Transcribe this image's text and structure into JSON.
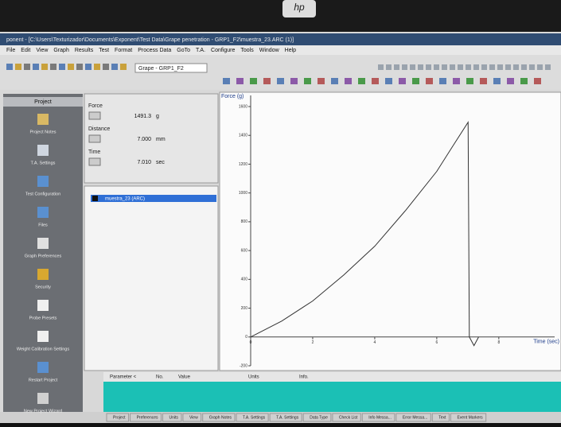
{
  "bezel": {
    "logo": "hp"
  },
  "window": {
    "title": "ponent - [C:\\Users\\Texturizador\\Documents\\Exponent\\Test Data\\Grape penetration - GRP1_F2\\muestra_23.ARC (1)]",
    "menu": [
      "File",
      "Edit",
      "View",
      "Graph",
      "Results",
      "Test",
      "Format",
      "Process Data",
      "GoTo",
      "T.A.",
      "Configure",
      "Tools",
      "Window",
      "Help"
    ],
    "dropdown": "Grape - GRP1_F2"
  },
  "project_panel": {
    "header": "Project",
    "items": [
      "Project Notes",
      "T.A. Settings",
      "Test Configuration",
      "Files",
      "Graph Preferences",
      "Security",
      "Probe Presets",
      "Weight Calibration Settings",
      "Restart Project",
      "New Project Wizard"
    ]
  },
  "readouts": [
    {
      "label": "Force",
      "value": "1491.3",
      "unit": "g"
    },
    {
      "label": "Distance",
      "value": "7.000",
      "unit": "mm"
    },
    {
      "label": "Time",
      "value": "7.010",
      "unit": "sec"
    }
  ],
  "files": [
    "muestra_23 (ARC)"
  ],
  "chart_data": {
    "type": "line",
    "y_label": "Force (g)",
    "x_label": "Time (sec)",
    "x": [
      0,
      1,
      2,
      3,
      4,
      5,
      6,
      6.5,
      7.01,
      7.05,
      7.2,
      7.35
    ],
    "series": [
      {
        "name": "muestra_23 (ARC)",
        "color": "#333333",
        "values": [
          0,
          110,
          250,
          430,
          630,
          880,
          1150,
          1320,
          1491.3,
          0,
          -60,
          0
        ]
      }
    ],
    "xlim": [
      0,
      9.8
    ],
    "xticks": [
      0,
      2,
      4,
      6,
      8
    ],
    "ylim": [
      -200,
      1600
    ],
    "yticks": [
      -200,
      0,
      200,
      400,
      600,
      800,
      1000,
      1200,
      1400,
      1600
    ],
    "grid": false
  },
  "bottom_table": {
    "headers": [
      "Parameter <",
      "No.",
      "Value",
      "Units",
      "Info."
    ]
  },
  "tabs": [
    "Project",
    "Preferences",
    "Units",
    "View",
    "Graph Notes",
    "T.A. Settings",
    "T.A. Settings",
    "Data Type",
    "Check List",
    "Info Messa...",
    "Error Messa...",
    "Text",
    "Event Markers"
  ]
}
